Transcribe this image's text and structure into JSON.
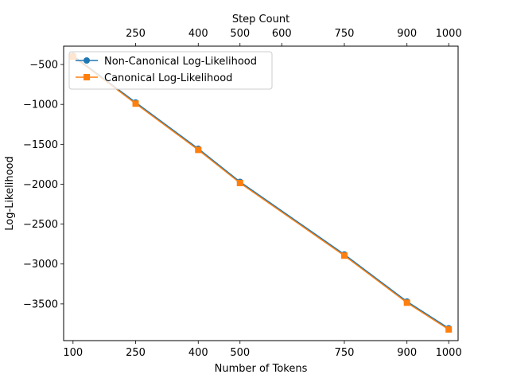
{
  "chart_data": {
    "type": "line",
    "x": [
      100,
      250,
      400,
      500,
      750,
      900,
      1000
    ],
    "x_tick_labels": [
      "100",
      "250",
      "400",
      "500",
      "750",
      "900",
      "1000"
    ],
    "top_x": [
      250,
      400,
      500,
      600,
      750,
      900,
      1000
    ],
    "top_x_tick_labels": [
      "250",
      "400",
      "500",
      "600",
      "750",
      "900",
      "1000"
    ],
    "xlabel": "Number of Tokens",
    "top_xlabel": "Step Count",
    "ylabel": "Log-Likelihood",
    "y_ticks": [
      -500,
      -1000,
      -1500,
      -2000,
      -2500,
      -3000,
      -3500
    ],
    "y_tick_labels": [
      "−500",
      "−1000",
      "−1500",
      "−2000",
      "−2500",
      "−3000",
      "−3500"
    ],
    "xlim": [
      77.5,
      1022.5
    ],
    "ylim": [
      -3960,
      -270
    ],
    "series": [
      {
        "name": "Non-Canonical Log-Likelihood",
        "color": "#1f77b4",
        "marker": "circle",
        "values": [
          -390,
          -975,
          -1555,
          -1970,
          -2880,
          -3470,
          -3805
        ]
      },
      {
        "name": "Canonical Log-Likelihood",
        "color": "#ff7f0e",
        "marker": "square",
        "values": [
          -400,
          -990,
          -1570,
          -1985,
          -2895,
          -3485,
          -3820
        ]
      }
    ],
    "legend_position": "upper-left",
    "grid": false
  }
}
